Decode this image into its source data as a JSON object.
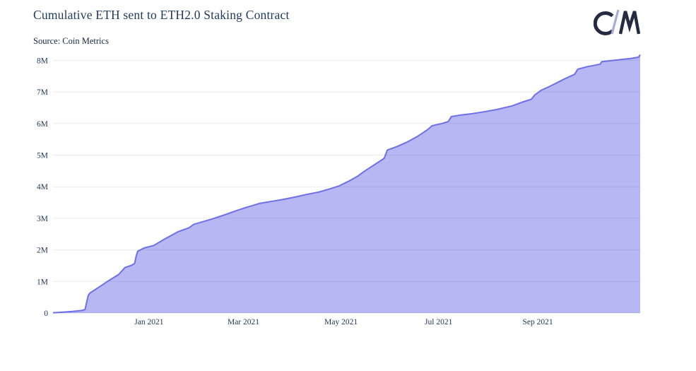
{
  "header": {
    "title": "Cumulative ETH sent to ETH2.0 Staking Contract",
    "source": "Source: Coin Metrics",
    "logo": "coin-metrics-cm-logo"
  },
  "chart_data": {
    "type": "area",
    "title": "Cumulative ETH sent to ETH2.0 Staking Contract",
    "subtitle": "Source: Coin Metrics",
    "unit": "ETH (millions)",
    "grid": "horizontal-only",
    "legend": "none",
    "xlabel": "",
    "ylabel": "",
    "ylim": [
      0,
      8.37
    ],
    "x_range": [
      "2020-11-02",
      "2021-11-04"
    ],
    "y_tick_values": [
      0,
      1,
      2,
      3,
      4,
      5,
      6,
      7,
      8
    ],
    "y_tick_labels": [
      "0",
      "1M",
      "2M",
      "3M",
      "4M",
      "5M",
      "6M",
      "7M",
      "8M"
    ],
    "x_tick_dates": [
      "2021-01-01",
      "2021-03-01",
      "2021-05-01",
      "2021-07-01",
      "2021-09-01"
    ],
    "x_tick_labels": [
      "Jan 2021",
      "Mar 2021",
      "May 2021",
      "Jul 2021",
      "Sep 2021"
    ],
    "colors": {
      "line": "#6d70e8",
      "fill": "#b6b7f3",
      "grid": "rgba(33,57,92,0.10)",
      "axis_text": "#21395c",
      "logo_dark": "#262b42",
      "logo_light": "#a7abdc"
    },
    "series": [
      {
        "name": "Cumulative ETH sent to ETH2.0 staking contract (millions)",
        "points": [
          [
            "2020-11-02",
            0.01
          ],
          [
            "2020-11-08",
            0.03
          ],
          [
            "2020-11-14",
            0.05
          ],
          [
            "2020-11-20",
            0.08
          ],
          [
            "2020-11-22",
            0.11
          ],
          [
            "2020-11-24",
            0.55
          ],
          [
            "2020-11-25",
            0.63
          ],
          [
            "2020-11-28",
            0.73
          ],
          [
            "2020-12-01",
            0.83
          ],
          [
            "2020-12-06",
            1.0
          ],
          [
            "2020-12-13",
            1.22
          ],
          [
            "2020-12-17",
            1.44
          ],
          [
            "2020-12-21",
            1.51
          ],
          [
            "2020-12-23",
            1.57
          ],
          [
            "2020-12-24",
            1.8
          ],
          [
            "2020-12-25",
            1.96
          ],
          [
            "2020-12-29",
            2.06
          ],
          [
            "2021-01-04",
            2.14
          ],
          [
            "2021-01-11",
            2.35
          ],
          [
            "2021-01-19",
            2.57
          ],
          [
            "2021-01-26",
            2.7
          ],
          [
            "2021-01-29",
            2.81
          ],
          [
            "2021-02-09",
            2.97
          ],
          [
            "2021-02-18",
            3.12
          ],
          [
            "2021-02-24",
            3.23
          ],
          [
            "2021-03-02",
            3.33
          ],
          [
            "2021-03-11",
            3.47
          ],
          [
            "2021-03-18",
            3.53
          ],
          [
            "2021-03-26",
            3.6
          ],
          [
            "2021-04-03",
            3.68
          ],
          [
            "2021-04-09",
            3.75
          ],
          [
            "2021-04-17",
            3.83
          ],
          [
            "2021-04-24",
            3.93
          ],
          [
            "2021-04-30",
            4.03
          ],
          [
            "2021-05-06",
            4.18
          ],
          [
            "2021-05-11",
            4.32
          ],
          [
            "2021-05-16",
            4.5
          ],
          [
            "2021-05-22",
            4.7
          ],
          [
            "2021-05-28",
            4.9
          ],
          [
            "2021-05-30",
            5.16
          ],
          [
            "2021-06-05",
            5.27
          ],
          [
            "2021-06-12",
            5.43
          ],
          [
            "2021-06-18",
            5.6
          ],
          [
            "2021-06-24",
            5.8
          ],
          [
            "2021-06-27",
            5.93
          ],
          [
            "2021-07-03",
            6.0
          ],
          [
            "2021-07-07",
            6.06
          ],
          [
            "2021-07-09",
            6.22
          ],
          [
            "2021-07-15",
            6.27
          ],
          [
            "2021-07-22",
            6.31
          ],
          [
            "2021-07-28",
            6.36
          ],
          [
            "2021-08-06",
            6.44
          ],
          [
            "2021-08-16",
            6.56
          ],
          [
            "2021-08-23",
            6.69
          ],
          [
            "2021-08-28",
            6.77
          ],
          [
            "2021-08-30",
            6.9
          ],
          [
            "2021-09-03",
            7.05
          ],
          [
            "2021-09-09",
            7.19
          ],
          [
            "2021-09-18",
            7.42
          ],
          [
            "2021-09-24",
            7.56
          ],
          [
            "2021-09-26",
            7.72
          ],
          [
            "2021-10-02",
            7.8
          ],
          [
            "2021-10-10",
            7.88
          ],
          [
            "2021-10-11",
            7.96
          ],
          [
            "2021-10-20",
            8.01
          ],
          [
            "2021-10-29",
            8.06
          ],
          [
            "2021-11-03",
            8.1
          ],
          [
            "2021-11-04",
            8.18
          ]
        ]
      }
    ]
  }
}
